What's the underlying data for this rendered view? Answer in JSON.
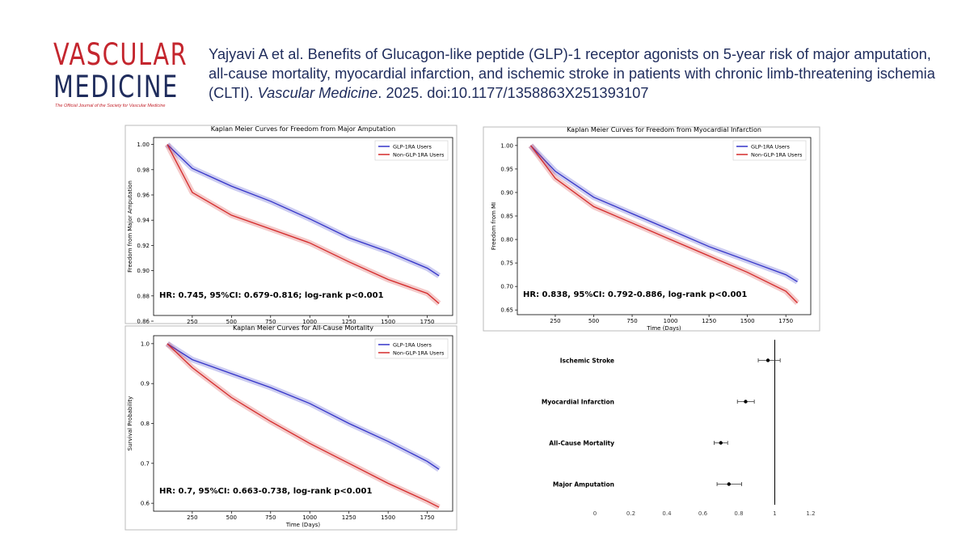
{
  "header": {
    "logo_line1": "VASCULAR",
    "logo_line2": "MEDICINE",
    "logo_tagline": "The Official Journal of the Society for Vascular Medicine",
    "citation_start": "Yajyavi A et al. Benefits of Glucagon-like peptide (GLP)-1 receptor agonists on 5-year risk of major amputation, all-cause mortality, myocardial infarction, and ischemic stroke in patients with chronic limb-threatening ischemia (CLTI).",
    "citation_journal": "Vascular Medicine",
    "citation_end": ". 2025. doi:10.1177/1358863X251393107"
  },
  "chart_data": [
    {
      "type": "line",
      "title": "Kaplan Meier Curves for Freedom from Major Amputation",
      "y_label": "Freedom from Major Amputation",
      "x": [
        90,
        250,
        500,
        750,
        1000,
        1250,
        1500,
        1750,
        1825
      ],
      "series": [
        {
          "name": "GLP-1RA Users",
          "color": "#3434c8",
          "values": [
            1.0,
            0.981,
            0.967,
            0.955,
            0.941,
            0.926,
            0.915,
            0.902,
            0.896
          ]
        },
        {
          "name": "Non-GLP-1RA Users",
          "color": "#d42a2a",
          "values": [
            1.0,
            0.962,
            0.944,
            0.933,
            0.922,
            0.907,
            0.893,
            0.882,
            0.874
          ]
        }
      ],
      "xlim": [
        3,
        1912
      ],
      "ylim": [
        0.8645,
        1.0055
      ],
      "xticks": [
        250,
        500,
        750,
        1000,
        1250,
        1500,
        1750
      ],
      "yticks": [
        {
          "value": 0.86,
          "label": "0.86"
        },
        {
          "value": 0.88,
          "label": "0.88"
        },
        {
          "value": 0.9,
          "label": "0.90"
        },
        {
          "value": 0.92,
          "label": "0.92"
        },
        {
          "value": 0.94,
          "label": "0.94"
        },
        {
          "value": 0.96,
          "label": "0.96"
        },
        {
          "value": 0.98,
          "label": "0.98"
        },
        {
          "value": 1.0,
          "label": "1.00"
        }
      ],
      "annotation": "HR: 0.745, 95%CI: 0.679-0.816; log-rank p<0.001",
      "legend": "upper right"
    },
    {
      "type": "line",
      "title": "Kaplan Meier Curves for Freedom from Myocardial Infarction",
      "x_label": "Time (Days)",
      "y_label": "Freedom from MI",
      "x": [
        90,
        250,
        500,
        750,
        1000,
        1250,
        1500,
        1750,
        1825
      ],
      "series": [
        {
          "name": "GLP-1RA Users",
          "color": "#3434c8",
          "values": [
            1.0,
            0.945,
            0.89,
            0.855,
            0.82,
            0.785,
            0.755,
            0.725,
            0.71
          ]
        },
        {
          "name": "Non-GLP-1RA Users",
          "color": "#d42a2a",
          "values": [
            1.0,
            0.93,
            0.87,
            0.835,
            0.8,
            0.765,
            0.73,
            0.69,
            0.665
          ]
        }
      ],
      "xlim": [
        3,
        1912
      ],
      "ylim": [
        0.64,
        1.017
      ],
      "xticks": [
        250,
        500,
        750,
        1000,
        1250,
        1500,
        1750
      ],
      "yticks": [
        {
          "value": 0.65,
          "label": "0.65"
        },
        {
          "value": 0.7,
          "label": "0.70"
        },
        {
          "value": 0.75,
          "label": "0.75"
        },
        {
          "value": 0.8,
          "label": "0.80"
        },
        {
          "value": 0.85,
          "label": "0.85"
        },
        {
          "value": 0.9,
          "label": "0.90"
        },
        {
          "value": 0.95,
          "label": "0.95"
        },
        {
          "value": 1.0,
          "label": "1.00"
        }
      ],
      "annotation": "HR: 0.838, 95%CI: 0.792-0.886, log-rank p<0.001",
      "legend": "upper right"
    },
    {
      "type": "line",
      "title": "Kaplan Meier Curves for All-Cause Mortality",
      "x_label": "Time (Days)",
      "y_label": "Survival Probability",
      "x": [
        90,
        250,
        500,
        750,
        1000,
        1250,
        1500,
        1750,
        1825
      ],
      "series": [
        {
          "name": "GLP-1RA Users",
          "color": "#3434c8",
          "values": [
            1.0,
            0.96,
            0.925,
            0.89,
            0.85,
            0.8,
            0.755,
            0.705,
            0.685
          ]
        },
        {
          "name": "Non-GLP-1RA Users",
          "color": "#d42a2a",
          "values": [
            1.0,
            0.94,
            0.865,
            0.805,
            0.75,
            0.7,
            0.65,
            0.605,
            0.59
          ]
        }
      ],
      "xlim": [
        3,
        1912
      ],
      "ylim": [
        0.58,
        1.02
      ],
      "xticks": [
        250,
        500,
        750,
        1000,
        1250,
        1500,
        1750
      ],
      "yticks": [
        0.6,
        0.7,
        0.8,
        0.9,
        {
          "value": 1.0,
          "label": "1.0"
        }
      ],
      "annotation": "HR: 0.7, 95%CI: 0.663-0.738, log-rank p<0.001",
      "legend": "upper right"
    },
    {
      "type": "forest",
      "categories": [
        "Ischemic Stroke",
        "Myocardial Infarction",
        "All-Cause Mortality",
        "Major Amputation"
      ],
      "values": [
        0.962,
        0.838,
        0.7,
        0.745
      ],
      "lower": [
        0.908,
        0.792,
        0.663,
        0.679
      ],
      "upper": [
        1.03,
        0.886,
        0.738,
        0.816
      ],
      "xlim": [
        0,
        1.2
      ],
      "xticks": [
        0,
        0.2,
        0.4,
        0.6,
        0.8,
        1,
        1.2
      ],
      "reference_line": 1,
      "color": "#000000"
    }
  ]
}
